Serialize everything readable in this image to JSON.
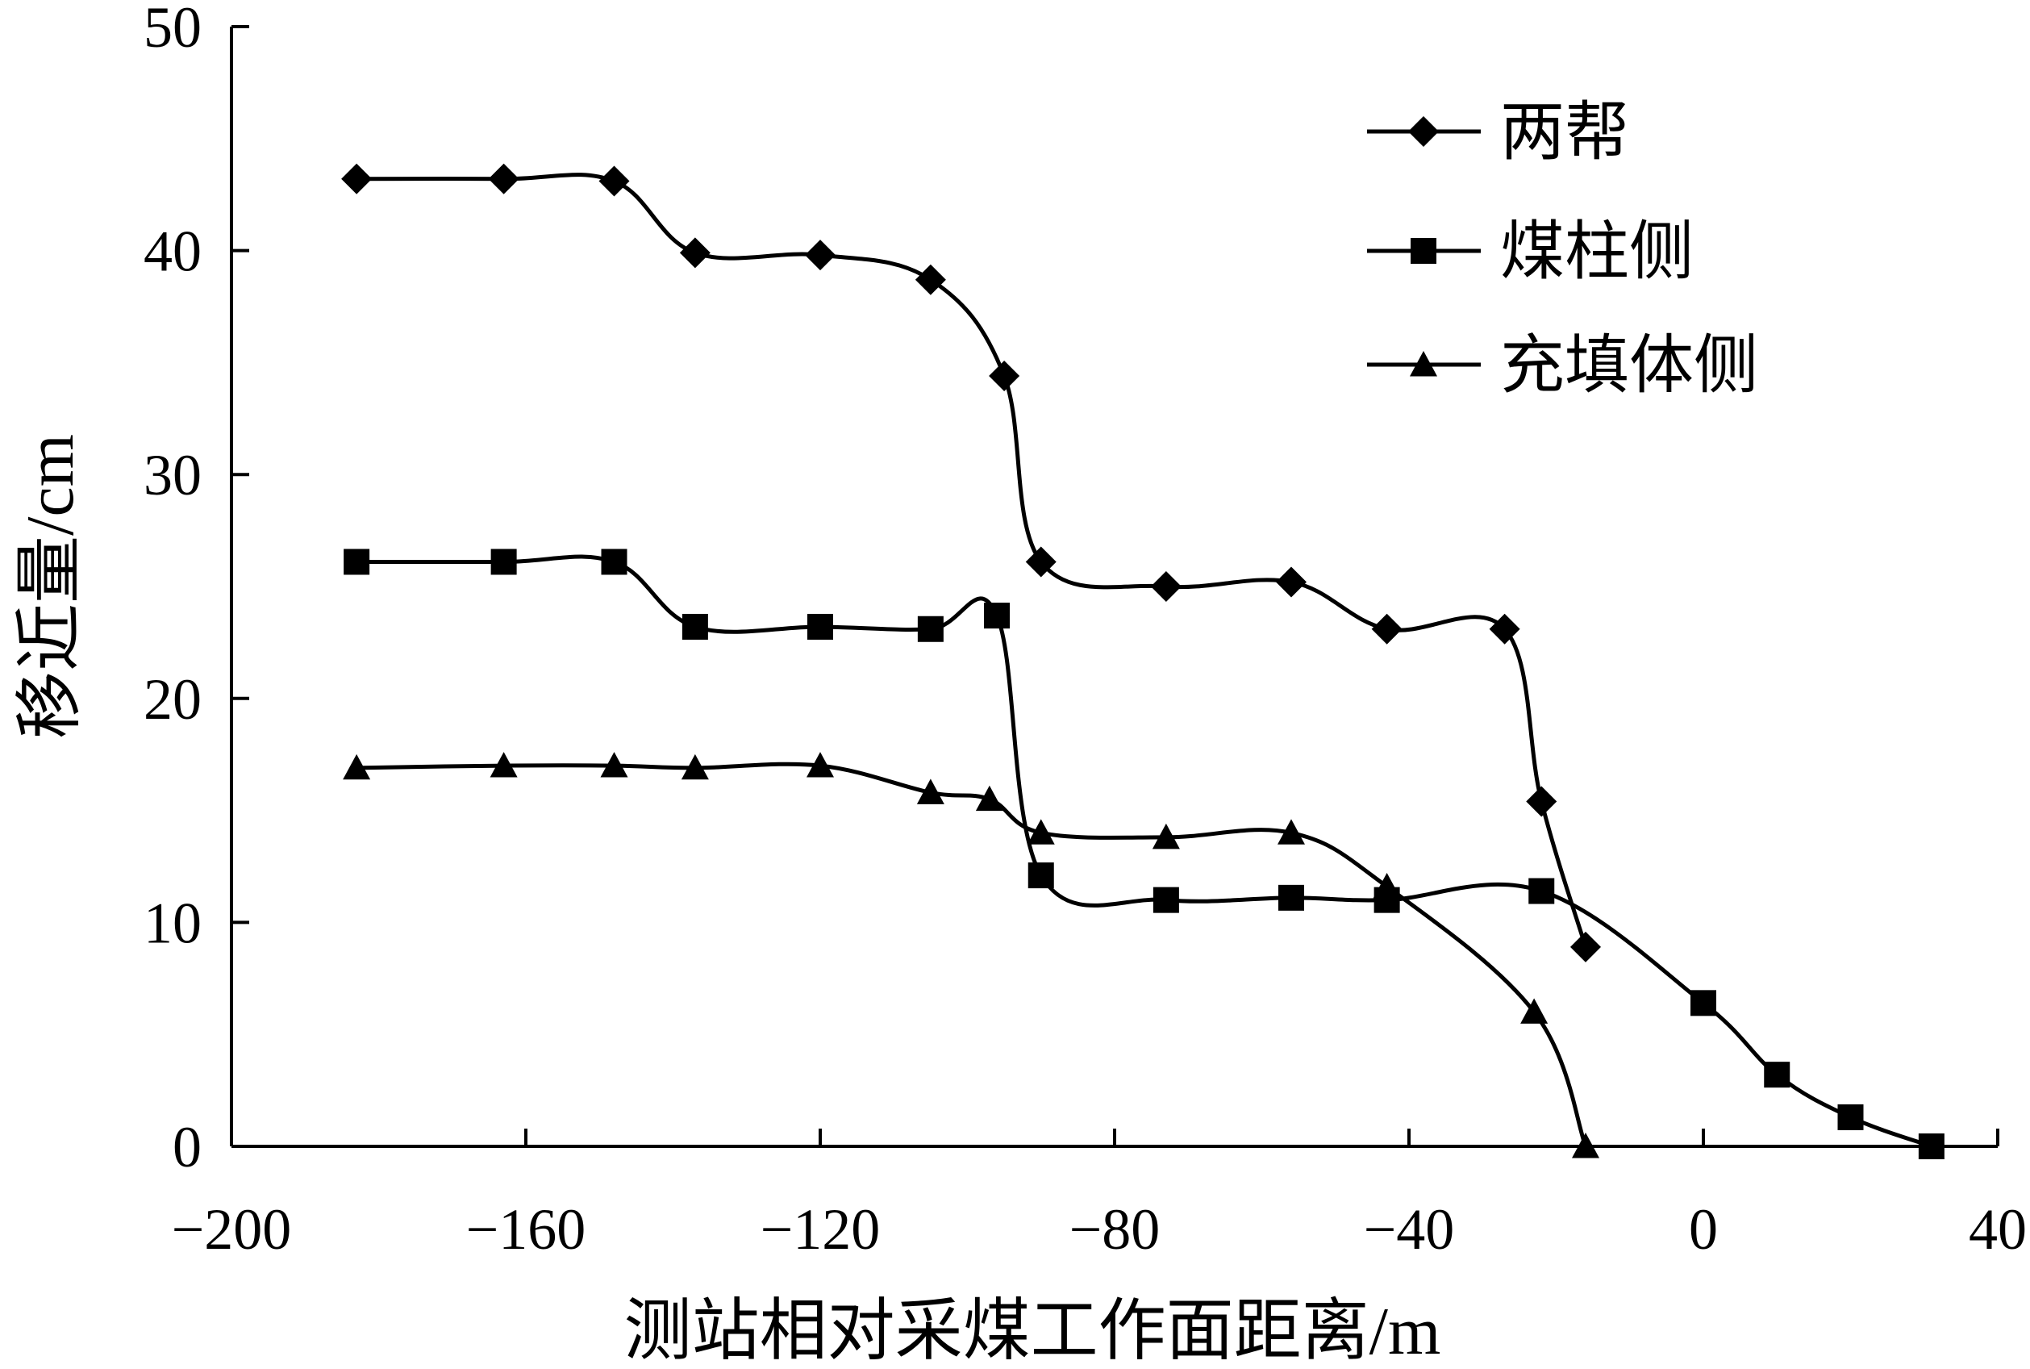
{
  "chart_data": {
    "type": "line",
    "xlabel": "测站相对采煤工作面距离/m",
    "ylabel": "移近量/cm",
    "xlim": [
      -200,
      40
    ],
    "ylim": [
      0,
      50
    ],
    "x_ticks": [
      -200,
      -160,
      -120,
      -80,
      -40,
      0,
      40
    ],
    "y_ticks": [
      0,
      10,
      20,
      30,
      40,
      50
    ],
    "x_tick_labels": [
      "−200",
      "−160",
      "−120",
      "−80",
      "−40",
      "0",
      "40"
    ],
    "y_tick_labels": [
      "0",
      "10",
      "20",
      "30",
      "40",
      "50"
    ],
    "grid": false,
    "legend_position": "top-right",
    "series": [
      {
        "name": "两帮",
        "marker": "diamond",
        "x": [
          -183,
          -163,
          -148,
          -137,
          -120,
          -105,
          -95,
          -90,
          -73,
          -56,
          -43,
          -27,
          -22,
          -16
        ],
        "y": [
          43.2,
          43.2,
          43.1,
          39.9,
          39.8,
          38.7,
          34.4,
          26.1,
          25.0,
          25.2,
          23.1,
          23.1,
          15.4,
          8.9
        ]
      },
      {
        "name": "煤柱侧",
        "marker": "square",
        "x": [
          -183,
          -163,
          -148,
          -137,
          -120,
          -105,
          -96,
          -90,
          -73,
          -56,
          -43,
          -22,
          0,
          10,
          20,
          31
        ],
        "y": [
          26.1,
          26.1,
          26.1,
          23.2,
          23.2,
          23.1,
          23.7,
          12.1,
          11.0,
          11.1,
          11.0,
          11.4,
          6.4,
          3.2,
          1.3,
          0.0
        ]
      },
      {
        "name": "充填体侧",
        "marker": "triangle",
        "x": [
          -183,
          -163,
          -148,
          -137,
          -120,
          -105,
          -97,
          -90,
          -73,
          -56,
          -43,
          -23,
          -16
        ],
        "y": [
          16.9,
          17.0,
          17.0,
          16.9,
          17.0,
          15.8,
          15.5,
          14.0,
          13.8,
          14.0,
          11.6,
          6.0,
          0.0
        ]
      }
    ]
  }
}
